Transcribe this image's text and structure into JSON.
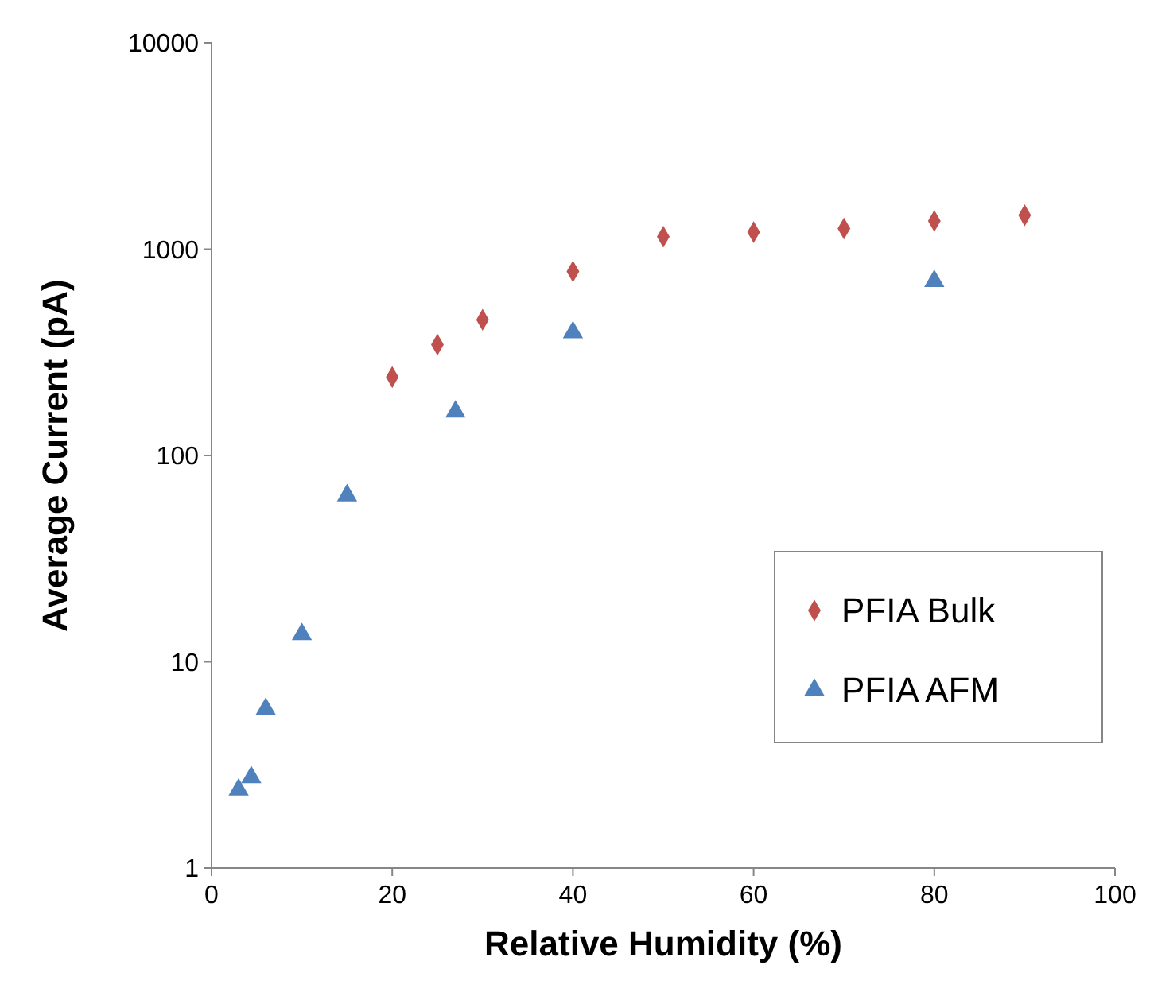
{
  "chart_data": {
    "type": "scatter",
    "xlabel": "Relative Humidity (%)",
    "ylabel": "Average Current (pA)",
    "log": "y",
    "xlim": [
      0,
      100
    ],
    "xticks": [
      0,
      20,
      40,
      60,
      80,
      100
    ],
    "ylim": [
      1,
      10000
    ],
    "yticks": [
      1,
      10,
      100,
      1000,
      10000
    ],
    "grid": false,
    "legend": "bottom right",
    "series": [
      {
        "name": "PFIA Bulk",
        "color": "#c0504d",
        "marker": "diamond",
        "x": [
          20,
          25,
          30,
          40,
          50,
          60,
          70,
          80,
          90
        ],
        "values": [
          240,
          345,
          455,
          780,
          1150,
          1210,
          1260,
          1370,
          1460
        ]
      },
      {
        "name": "PFIA AFM",
        "color": "#4f81bd",
        "marker": "triangle",
        "x": [
          3,
          4.4,
          6,
          10,
          15,
          27,
          40,
          80
        ],
        "values": [
          2.4,
          2.75,
          5.9,
          13.6,
          64,
          163,
          395,
          700
        ]
      }
    ]
  }
}
